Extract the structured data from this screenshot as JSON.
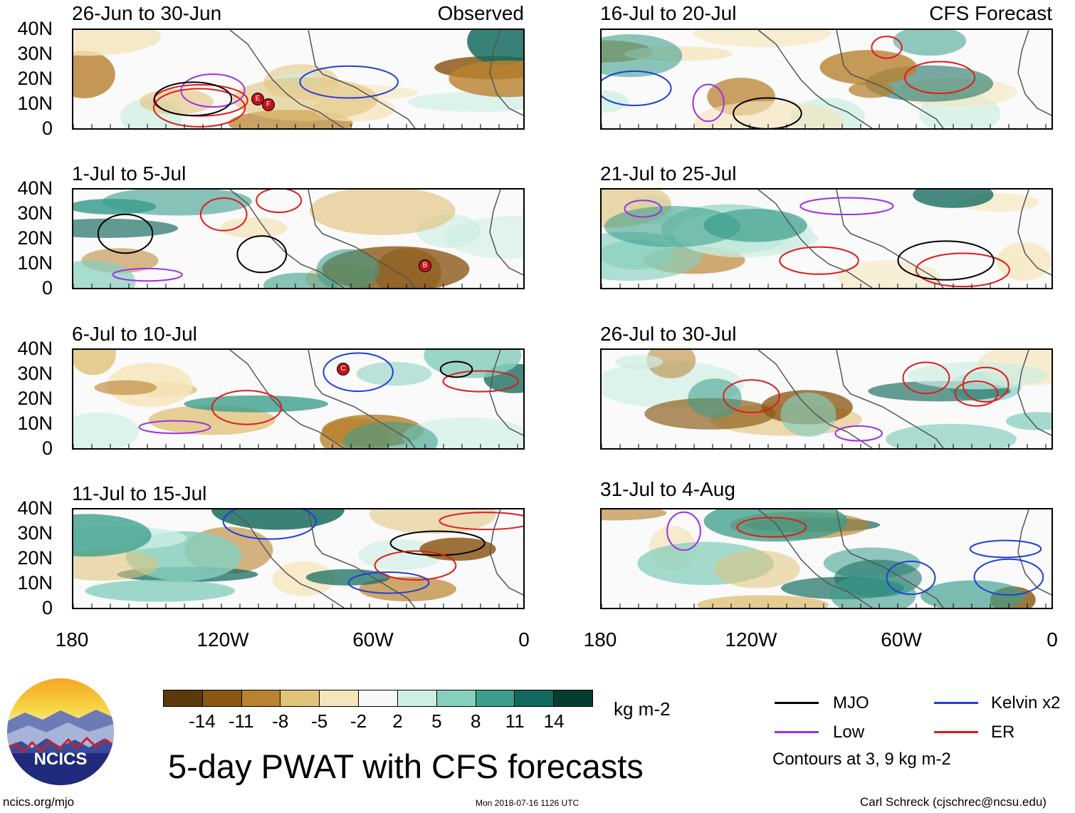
{
  "panels": [
    {
      "title": "26-Jun to 30-Jun",
      "tag": "Observed"
    },
    {
      "title": "16-Jul to 20-Jul",
      "tag": "CFS Forecast"
    },
    {
      "title": "1-Jul to 5-Jul",
      "tag": ""
    },
    {
      "title": "21-Jul to 25-Jul",
      "tag": ""
    },
    {
      "title": "6-Jul to 10-Jul",
      "tag": ""
    },
    {
      "title": "26-Jul to 30-Jul",
      "tag": ""
    },
    {
      "title": "11-Jul to 15-Jul",
      "tag": ""
    },
    {
      "title": "31-Jul to 4-Aug",
      "tag": ""
    }
  ],
  "lat_ticks": [
    "40N",
    "30N",
    "20N",
    "10N",
    "0"
  ],
  "lon_ticks": [
    "180",
    "120W",
    "60W",
    "0"
  ],
  "colorbar": {
    "colors": [
      "#5a3a0c",
      "#8a5714",
      "#b98230",
      "#e1c37b",
      "#f5e5bb",
      "#f8f8f8",
      "#cdeee3",
      "#86cfbd",
      "#3c9e8c",
      "#12695d",
      "#073d31"
    ],
    "labels": [
      "-14",
      "-11",
      "-8",
      "-5",
      "-2",
      "2",
      "5",
      "8",
      "11",
      "14"
    ],
    "units": "kg m-2"
  },
  "title": "5-day PWAT with CFS forecasts",
  "legend": {
    "items": [
      {
        "label": "MJO",
        "color": "#000000"
      },
      {
        "label": "Kelvin x2",
        "color": "#1f3fd8"
      },
      {
        "label": "Low",
        "color": "#9b30e8"
      },
      {
        "label": "ER",
        "color": "#e01b1b"
      }
    ],
    "note": "Contours at 3, 9 kg m-2"
  },
  "footer": {
    "logo_text": "NCICS",
    "site": "ncics.org/mjo",
    "timestamp": "Mon 2018-07-16 1126 UTC",
    "credit": "Carl Schreck (cjschrec@ncsu.edu)"
  },
  "storm_markers": [
    {
      "panel": 0,
      "labels": [
        "E",
        "F"
      ]
    },
    {
      "panel": 2,
      "labels": [
        "B"
      ]
    },
    {
      "panel": 4,
      "labels": [
        "C"
      ]
    }
  ]
}
